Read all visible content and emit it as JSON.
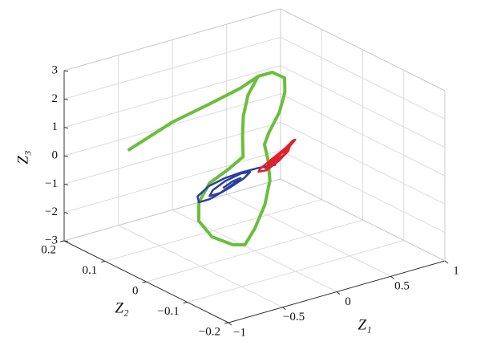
{
  "chart_data": {
    "type": "line3d",
    "xlabel": "Z₁",
    "ylabel": "Z₂",
    "zlabel": "Z₃",
    "xlim": [
      -1,
      1
    ],
    "ylim": [
      -0.2,
      0.2
    ],
    "zlim": [
      -3,
      3
    ],
    "xticks": [
      {
        "value": -1,
        "label": "−1"
      },
      {
        "value": -0.5,
        "label": "−0.5"
      },
      0,
      0.5,
      1
    ],
    "yticks": [
      {
        "value": -0.2,
        "label": "−0.2"
      },
      {
        "value": -0.1,
        "label": "−0.1"
      },
      0,
      0.1,
      0.2
    ],
    "zticks": [
      {
        "value": -3,
        "label": "−3"
      },
      {
        "value": -2,
        "label": "−2"
      },
      {
        "value": -1,
        "label": "−1"
      },
      0,
      1,
      2,
      3
    ],
    "grid": true,
    "series": [
      {
        "color": "#6abf3a",
        "x": [
          -0.98,
          -0.51,
          -0.15,
          0.17,
          0.36,
          0.49,
          0.57,
          0.52,
          0.4,
          0.24,
          0.16,
          0.13,
          0.07,
          -0.06,
          -0.23,
          -0.37,
          -0.47,
          -0.61,
          -0.66,
          -0.59,
          -0.43,
          -0.22,
          -0.06,
          0.01,
          0.09,
          0.21,
          0.36
        ],
        "y": [
          0.05,
          0.065,
          0.072,
          0.079,
          0.086,
          0.086,
          0.077,
          0.063,
          0.045,
          0.028,
          0.018,
          0.001,
          -0.019,
          -0.041,
          -0.061,
          -0.074,
          -0.071,
          -0.057,
          -0.038,
          -0.02,
          -0.004,
          0.004,
          0.012,
          0.032,
          0.051,
          0.071,
          0.086
        ],
        "z": [
          1.25,
          1.63,
          1.81,
          1.98,
          2.14,
          2.14,
          1.92,
          1.57,
          1.12,
          0.71,
          0.45,
          0.03,
          -0.46,
          -1.01,
          -1.53,
          -1.85,
          -1.76,
          -1.43,
          -0.95,
          -0.5,
          -0.11,
          0.11,
          0.3,
          0.79,
          1.28,
          1.76,
          2.14
        ]
      },
      {
        "color": "#2b3fa0",
        "x": [
          0.18,
          0.01,
          -0.14,
          -0.29,
          -0.45,
          -0.58,
          -0.59,
          -0.49,
          -0.3,
          -0.13,
          -0.06,
          -0.14,
          -0.3,
          -0.43,
          -0.48,
          -0.38,
          -0.23,
          -0.16,
          -0.24,
          -0.34
        ],
        "y": [
          -0.005,
          -0.003,
          -0.003,
          -0.004,
          -0.007,
          -0.014,
          -0.02,
          -0.02,
          -0.015,
          -0.009,
          -0.005,
          -0.004,
          -0.007,
          -0.012,
          -0.017,
          -0.017,
          -0.011,
          -0.008,
          -0.009,
          -0.013
        ],
        "z": [
          -0.12,
          -0.08,
          -0.07,
          -0.09,
          -0.18,
          -0.35,
          -0.5,
          -0.5,
          -0.37,
          -0.23,
          -0.12,
          -0.09,
          -0.17,
          -0.3,
          -0.42,
          -0.42,
          -0.28,
          -0.2,
          -0.23,
          -0.32
        ]
      },
      {
        "color": "#e0202a",
        "x": [
          0.07,
          0.15,
          0.26,
          0.36,
          0.43,
          0.41,
          0.31,
          0.17,
          0.04,
          0.01,
          0.08,
          0.22,
          0.33,
          0.36,
          0.28,
          0.17,
          0.11,
          0.17,
          0.26
        ],
        "y": [
          -0.006,
          -0.004,
          0.001,
          0.009,
          0.014,
          0.014,
          0.008,
          0.002,
          -0.004,
          -0.007,
          -0.008,
          -0.002,
          0.005,
          0.009,
          0.005,
          0,
          -0.003,
          -0.002,
          0.002
        ],
        "z": [
          -0.14,
          -0.1,
          0.03,
          0.23,
          0.35,
          0.35,
          0.21,
          0.04,
          -0.11,
          -0.17,
          -0.19,
          -0.04,
          0.12,
          0.23,
          0.13,
          0,
          -0.08,
          -0.05,
          0.05
        ]
      }
    ]
  }
}
